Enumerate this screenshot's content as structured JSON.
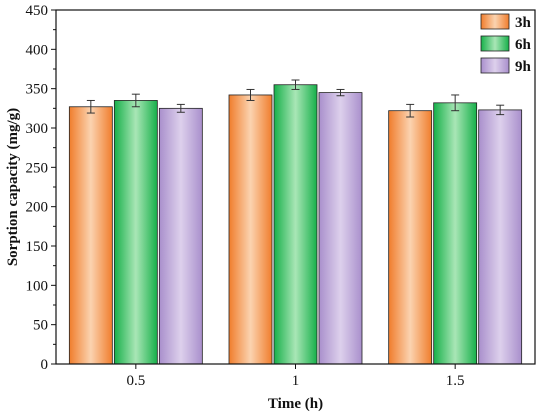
{
  "chart_data": {
    "type": "bar",
    "xlabel": "Time (h)",
    "ylabel": "Sorption capacity (mg/g)",
    "categories": [
      "0.5",
      "1",
      "1.5"
    ],
    "ylim": [
      0,
      450
    ],
    "yticks": [
      "0",
      "50",
      "100",
      "150",
      "200",
      "250",
      "300",
      "350",
      "400",
      "450"
    ],
    "grid": false,
    "legend_position": "top-right",
    "series": [
      {
        "name": "3h",
        "values": [
          327,
          342,
          322
        ],
        "errors": [
          8,
          7,
          8
        ],
        "color_light": "#fbd3b0",
        "color_dark": "#f07d2c"
      },
      {
        "name": "6h",
        "values": [
          335,
          355,
          332
        ],
        "errors": [
          8,
          6,
          10
        ],
        "color_light": "#a9e6b6",
        "color_dark": "#17b04a"
      },
      {
        "name": "9h",
        "values": [
          325,
          345,
          323
        ],
        "errors": [
          5,
          4,
          6
        ],
        "color_light": "#ddd0ec",
        "color_dark": "#a98fcc"
      }
    ]
  }
}
